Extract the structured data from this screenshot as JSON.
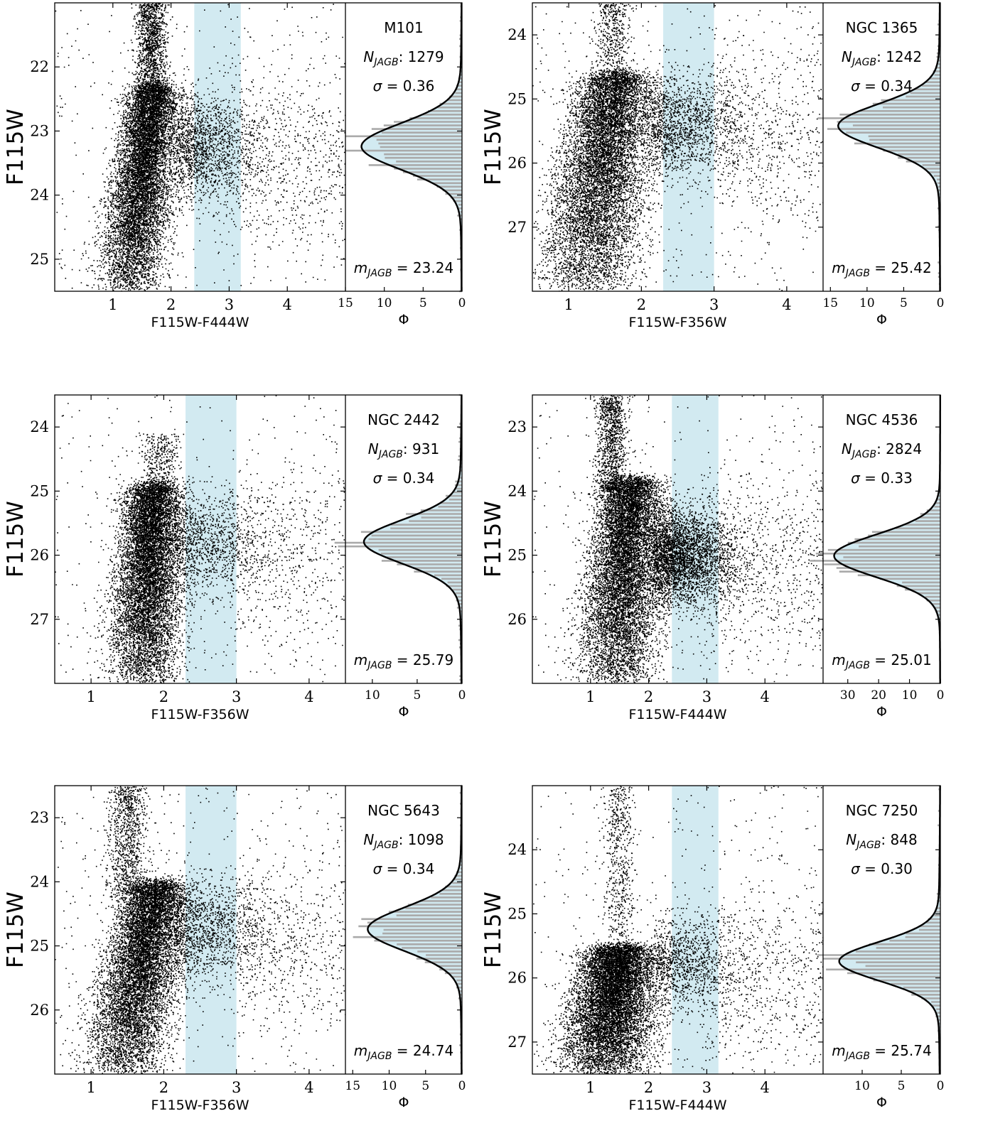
{
  "colors": {
    "band": "#add8e6",
    "hist": "#aaaaaa",
    "points": "#000000",
    "curve": "#000000"
  },
  "chart_data": [
    {
      "type": "scatter",
      "galaxy": "M101",
      "xlabel": "F115W-F444W",
      "ylabel": "F115W",
      "phi_label": "Φ",
      "n_label": "1279",
      "sigma_label": "0.36",
      "m_label": "23.24",
      "m_jagb": 23.24,
      "sigma": 0.36,
      "n_jagb": 1279,
      "xlim": [
        0.0,
        5.0
      ],
      "ylim": [
        25.5,
        21.0
      ],
      "xticks": [
        "1",
        "2",
        "3",
        "4"
      ],
      "xtick_values": [
        1,
        2,
        3,
        4
      ],
      "yticks": [
        "22",
        "23",
        "24",
        "25"
      ],
      "ytick_values": [
        22,
        23,
        24,
        25
      ],
      "band": [
        2.4,
        3.2
      ],
      "phi_max": 15,
      "phi_ticks": [
        "15",
        "10",
        "5",
        "0"
      ],
      "phi_tick_values": [
        15,
        10,
        5,
        0
      ],
      "peak_phi": 12.5,
      "cloud": {
        "ymin": 22.3,
        "ymax": 25.5,
        "c_bright": 1.7,
        "c_faint": 1.25,
        "c_width": 0.25,
        "plume": [
          1.0,
          21.0,
          22.4,
          1.65
        ]
      }
    },
    {
      "type": "scatter",
      "galaxy": "NGC 1365",
      "xlabel": "F115W-F356W",
      "ylabel": "F115W",
      "phi_label": "Φ",
      "n_label": "1242",
      "sigma_label": "0.34",
      "m_label": "25.42",
      "m_jagb": 25.42,
      "sigma": 0.34,
      "n_jagb": 1242,
      "xlim": [
        0.5,
        4.5
      ],
      "ylim": [
        28.0,
        23.5
      ],
      "xticks": [
        "1",
        "2",
        "3",
        "4"
      ],
      "xtick_values": [
        1,
        2,
        3,
        4
      ],
      "yticks": [
        "24",
        "25",
        "26",
        "27"
      ],
      "ytick_values": [
        24,
        25,
        26,
        27
      ],
      "band": [
        2.3,
        3.0
      ],
      "phi_max": 16,
      "phi_ticks": [
        "15",
        "10",
        "5",
        "0"
      ],
      "phi_tick_values": [
        15,
        10,
        5,
        0
      ],
      "peak_phi": 13.5,
      "cloud": {
        "ymin": 24.6,
        "ymax": 28.0,
        "c_bright": 1.65,
        "c_faint": 1.2,
        "c_width": 0.3,
        "plume": [
          0.4,
          23.5,
          24.8,
          1.6
        ]
      }
    },
    {
      "type": "scatter",
      "galaxy": "NGC 2442",
      "xlabel": "F115W-F356W",
      "ylabel": "F115W",
      "phi_label": "Φ",
      "n_label": "931",
      "sigma_label": "0.34",
      "m_label": "25.79",
      "m_jagb": 25.79,
      "sigma": 0.34,
      "n_jagb": 931,
      "xlim": [
        0.5,
        4.5
      ],
      "ylim": [
        28.0,
        23.5
      ],
      "xticks": [
        "1",
        "2",
        "3",
        "4"
      ],
      "xtick_values": [
        1,
        2,
        3,
        4
      ],
      "yticks": [
        "24",
        "25",
        "26",
        "27"
      ],
      "ytick_values": [
        24,
        25,
        26,
        27
      ],
      "band": [
        2.3,
        3.0
      ],
      "phi_max": 13,
      "phi_ticks": [
        "10",
        "5",
        "0"
      ],
      "phi_tick_values": [
        10,
        5,
        0
      ],
      "peak_phi": 10.5,
      "cloud": {
        "ymin": 24.9,
        "ymax": 28.0,
        "c_bright": 1.85,
        "c_faint": 1.7,
        "c_width": 0.22,
        "plume": [
          0.3,
          24.1,
          25.0,
          1.95
        ]
      }
    },
    {
      "type": "scatter",
      "galaxy": "NGC 4536",
      "xlabel": "F115W-F444W",
      "ylabel": "F115W",
      "phi_label": "Φ",
      "n_label": "2824",
      "sigma_label": "0.33",
      "m_label": "25.01",
      "m_jagb": 25.01,
      "sigma": 0.33,
      "n_jagb": 2824,
      "xlim": [
        0.0,
        5.0
      ],
      "ylim": [
        27.0,
        22.5
      ],
      "xticks": [
        "1",
        "2",
        "3",
        "4"
      ],
      "xtick_values": [
        1,
        2,
        3,
        4
      ],
      "yticks": [
        "23",
        "24",
        "25",
        "26"
      ],
      "ytick_values": [
        23,
        24,
        25,
        26
      ],
      "band": [
        2.4,
        3.2
      ],
      "phi_max": 38,
      "phi_ticks": [
        "30",
        "20",
        "10",
        "0"
      ],
      "phi_tick_values": [
        30,
        20,
        10,
        0
      ],
      "peak_phi": 34,
      "cloud": {
        "ymin": 23.8,
        "ymax": 27.0,
        "c_bright": 1.7,
        "c_faint": 1.4,
        "c_width": 0.3,
        "plume": [
          0.8,
          22.5,
          24.0,
          1.35
        ]
      }
    },
    {
      "type": "scatter",
      "galaxy": "NGC 5643",
      "xlabel": "F115W-F356W",
      "ylabel": "F115W",
      "phi_label": "Φ",
      "n_label": "1098",
      "sigma_label": "0.34",
      "m_label": "24.74",
      "m_jagb": 24.74,
      "sigma": 0.34,
      "n_jagb": 1098,
      "xlim": [
        0.5,
        4.5
      ],
      "ylim": [
        27.0,
        22.5
      ],
      "xticks": [
        "1",
        "2",
        "3",
        "4"
      ],
      "xtick_values": [
        1,
        2,
        3,
        4
      ],
      "yticks": [
        "23",
        "24",
        "25",
        "26"
      ],
      "ytick_values": [
        23,
        24,
        25,
        26
      ],
      "band": [
        2.3,
        3.0
      ],
      "phi_max": 16,
      "phi_ticks": [
        "15",
        "10",
        "5",
        "0"
      ],
      "phi_tick_values": [
        15,
        10,
        5,
        0
      ],
      "peak_phi": 12.5,
      "cloud": {
        "ymin": 24.0,
        "ymax": 27.0,
        "c_bright": 1.9,
        "c_faint": 1.4,
        "c_width": 0.25,
        "plume": [
          0.7,
          22.5,
          24.2,
          1.5
        ]
      }
    },
    {
      "type": "scatter",
      "galaxy": "NGC 7250",
      "xlabel": "F115W-F444W",
      "ylabel": "F115W",
      "phi_label": "Φ",
      "n_label": "848",
      "sigma_label": "0.30",
      "m_label": "25.74",
      "m_jagb": 25.74,
      "sigma": 0.3,
      "n_jagb": 848,
      "xlim": [
        0.0,
        5.0
      ],
      "ylim": [
        27.5,
        23.0
      ],
      "xticks": [
        "1",
        "2",
        "3",
        "4"
      ],
      "xtick_values": [
        1,
        2,
        3,
        4
      ],
      "yticks": [
        "24",
        "25",
        "26",
        "27"
      ],
      "ytick_values": [
        24,
        25,
        26,
        27
      ],
      "band": [
        2.4,
        3.2
      ],
      "phi_max": 15,
      "phi_ticks": [
        "10",
        "5",
        "0"
      ],
      "phi_tick_values": [
        10,
        5,
        0
      ],
      "peak_phi": 12.5,
      "cloud": {
        "ymin": 25.5,
        "ymax": 27.5,
        "c_bright": 1.5,
        "c_faint": 1.2,
        "c_width": 0.35,
        "plume": [
          0.4,
          23.0,
          25.4,
          1.5
        ]
      }
    }
  ]
}
